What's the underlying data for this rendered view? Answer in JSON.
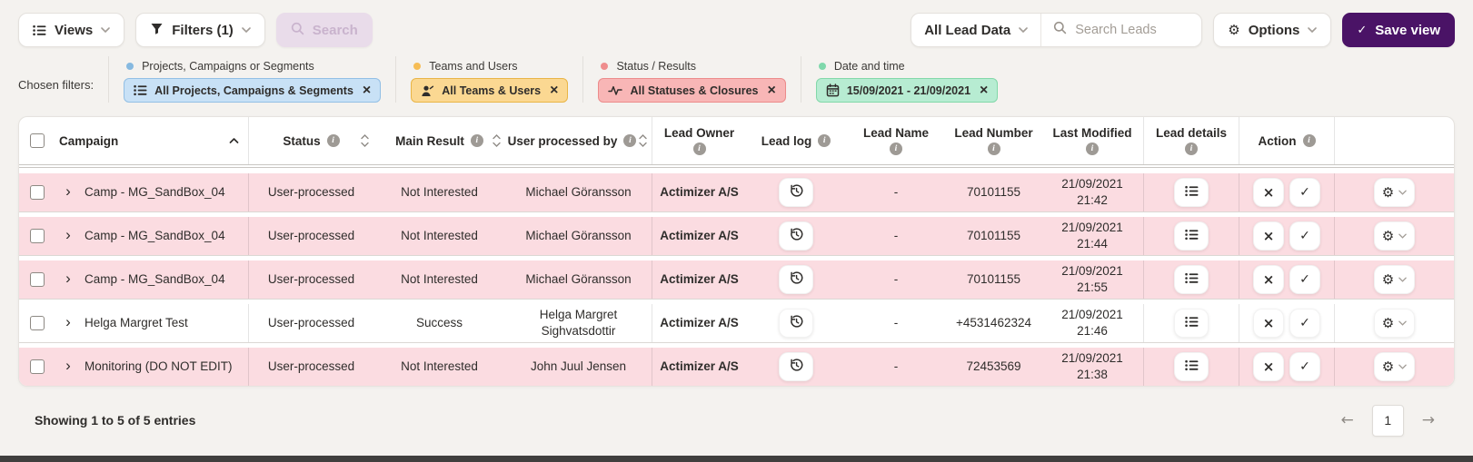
{
  "toolbar": {
    "views_label": "Views",
    "filters_label": "Filters (1)",
    "search_label": "Search",
    "lead_data_label": "All Lead Data",
    "search_placeholder": "Search Leads",
    "options_label": "Options",
    "save_view_label": "Save view"
  },
  "chosen_filters": {
    "label": "Chosen filters:",
    "groups": [
      {
        "category": "Projects, Campaigns or Segments",
        "chip_label": "All Projects, Campaigns & Segments",
        "icon": "list-icon",
        "dot_color": "#86b9e0",
        "chip_bg": "#c8e1f6",
        "chip_border": "#92bfe5"
      },
      {
        "category": "Teams and Users",
        "chip_label": "All Teams & Users",
        "icon": "user-icon",
        "dot_color": "#f6bd55",
        "chip_bg": "#fbd892",
        "chip_border": "#e9b546"
      },
      {
        "category": "Status / Results",
        "chip_label": "All Statuses & Closures",
        "icon": "activity-icon",
        "dot_color": "#ef8d8d",
        "chip_bg": "#f8b6b6",
        "chip_border": "#ec8b8b"
      },
      {
        "category": "Date and time",
        "chip_label": "15/09/2021 - 21/09/2021",
        "icon": "calendar-icon",
        "dot_color": "#7fd8ab",
        "chip_bg": "#b7ecd2",
        "chip_border": "#82d8a9"
      }
    ]
  },
  "table": {
    "headers": {
      "campaign": "Campaign",
      "status": "Status",
      "main_result": "Main Result",
      "user_processed_by": "User processed by",
      "lead_owner": "Lead Owner",
      "lead_log": "Lead log",
      "lead_name": "Lead Name",
      "lead_number": "Lead Number",
      "last_modified": "Last Modified",
      "lead_details": "Lead details",
      "action": "Action"
    },
    "rows": [
      {
        "campaign": "Camp - MG_SandBox_04",
        "status": "User-processed",
        "main_result": "Not Interested",
        "user": "Michael Göransson",
        "lead_owner": "Actimizer A/S",
        "lead_name": "-",
        "lead_number": "70101155",
        "modified_date": "21/09/2021",
        "modified_time": "21:42",
        "highlight": "pink"
      },
      {
        "campaign": "Camp - MG_SandBox_04",
        "status": "User-processed",
        "main_result": "Not Interested",
        "user": "Michael Göransson",
        "lead_owner": "Actimizer A/S",
        "lead_name": "-",
        "lead_number": "70101155",
        "modified_date": "21/09/2021",
        "modified_time": "21:44",
        "highlight": "pink"
      },
      {
        "campaign": "Camp - MG_SandBox_04",
        "status": "User-processed",
        "main_result": "Not Interested",
        "user": "Michael Göransson",
        "lead_owner": "Actimizer A/S",
        "lead_name": "-",
        "lead_number": "70101155",
        "modified_date": "21/09/2021",
        "modified_time": "21:55",
        "highlight": "pink"
      },
      {
        "campaign": "Helga Margret Test",
        "status": "User-processed",
        "main_result": "Success",
        "user": "Helga Margret Sighvatsdottir",
        "lead_owner": "Actimizer A/S",
        "lead_name": "-",
        "lead_number": "+4531462324",
        "modified_date": "21/09/2021",
        "modified_time": "21:46",
        "highlight": "white"
      },
      {
        "campaign": "Monitoring (DO NOT EDIT)",
        "status": "User-processed",
        "main_result": "Not Interested",
        "user": "John Juul Jensen",
        "lead_owner": "Actimizer A/S",
        "lead_name": "-",
        "lead_number": "72453569",
        "modified_date": "21/09/2021",
        "modified_time": "21:38",
        "highlight": "pink"
      }
    ]
  },
  "footer": {
    "showing_text": "Showing 1 to 5 of 5 entries",
    "page": "1"
  },
  "colors": {
    "accent": "#4a1366",
    "row_highlight_pink": "#fbdce1",
    "page_background": "#f4f2ef",
    "disabled_search_bg": "#e9dcea",
    "disabled_search_text": "#c9b3cd"
  }
}
